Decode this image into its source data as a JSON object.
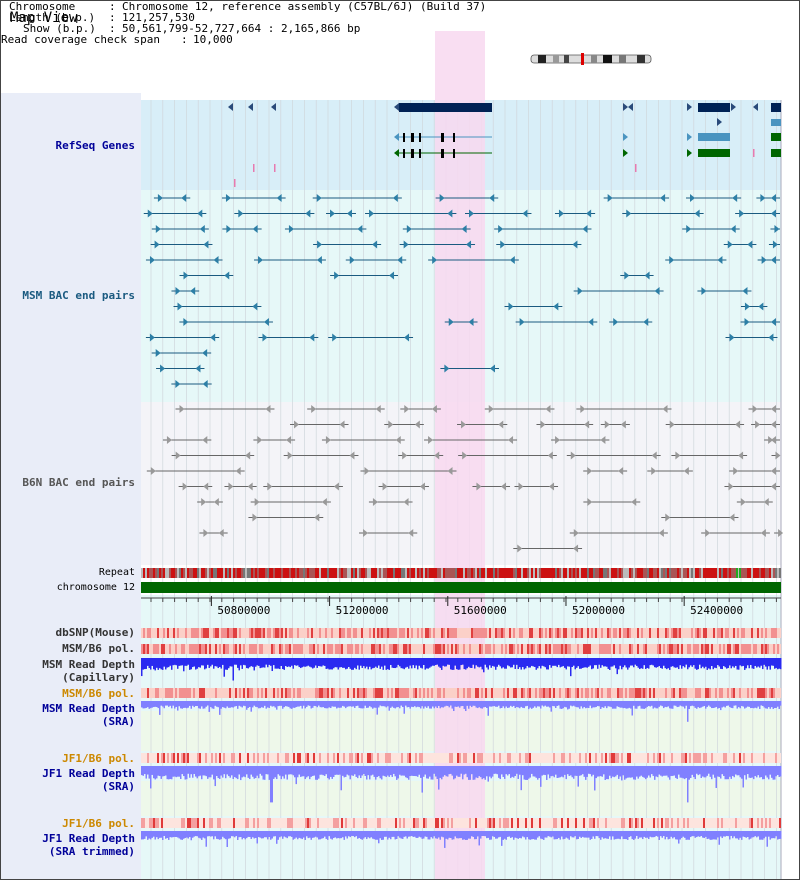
{
  "view_title": "Map View",
  "header": {
    "chromosome_label": "Chromosome",
    "chromosome_value": "Chromosome 12, reference assembly (C57BL/6J) (Build 37)",
    "length_label": "Length (b.p.)",
    "length_value": "121,257,530",
    "show_label": "Show (b.p.)",
    "show_value": "50,561,799-52,727,664 : 2,165,866 bp",
    "coverage_label": "Read coverage check span",
    "coverage_value": "10,000"
  },
  "tracks": {
    "refseq": {
      "label": "RefSeq Genes",
      "color": "#000099"
    },
    "msm_bac": {
      "label": "MSM BAC end pairs",
      "color": "#1a5a80"
    },
    "b6n_bac": {
      "label": "B6N BAC end pairs",
      "color": "#555555"
    },
    "repeat": {
      "label": "Repeat"
    },
    "chromosome": {
      "label": "chromosome 12",
      "color": "#006600"
    },
    "dbsnp": {
      "label": "dbSNP(Mouse)"
    },
    "msm_b6_pol": {
      "label": "MSM/B6 pol."
    },
    "msm_read_depth_cap": {
      "label": "MSM Read Depth\n(Capillary)"
    },
    "msm_b6_pol_2": {
      "label": "MSM/B6 pol.",
      "color": "#cc8800"
    },
    "msm_read_depth_sra": {
      "label": "MSM Read Depth\n(SRA)",
      "color": "#000099"
    },
    "jf1_b6_pol": {
      "label": "JF1/B6 pol.",
      "color": "#cc8800"
    },
    "jf1_read_depth_sra": {
      "label": "JF1 Read Depth\n(SRA)",
      "color": "#000099"
    },
    "jf1_b6_pol_2": {
      "label": "JF1/B6 pol.",
      "color": "#cc8800"
    },
    "jf1_read_depth_trim": {
      "label": "JF1 Read Depth\n(SRA trimmed)",
      "color": "#000099"
    }
  },
  "axis": {
    "ticks": [
      "50800000",
      "51200000",
      "51600000",
      "52000000",
      "52400000"
    ],
    "tick_values": [
      50800000,
      51200000,
      51600000,
      52000000,
      52400000
    ],
    "range": [
      50561799,
      52727664
    ]
  },
  "colors": {
    "highlight": "#f8d8f0",
    "refseq_bg": "#d8eef8",
    "msm_bg": "#e6f8f8",
    "b6n_bg": "#f4f4f8",
    "gene_dark": "#002255",
    "gene_mid": "#4a94c0",
    "gene_green": "#006600",
    "depth_blue": "#2a2af0",
    "depth_light": "#8080ff"
  }
}
